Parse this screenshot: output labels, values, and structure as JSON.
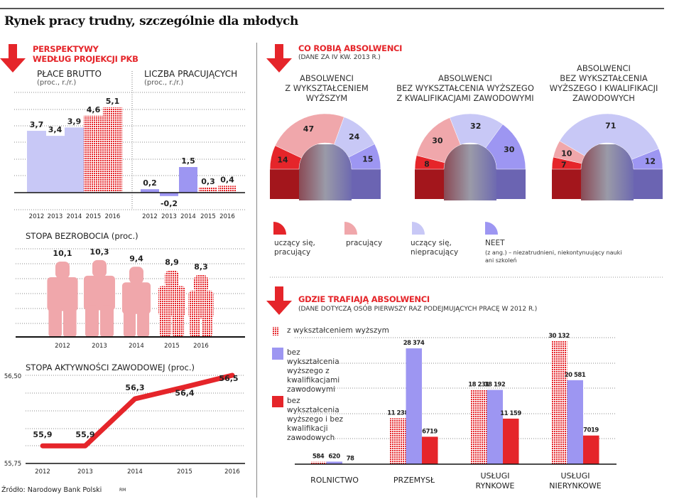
{
  "title": "Rynek pracy trudny, szczególnie dla młodych",
  "colors": {
    "accent": "#e5252a",
    "light_blue": "#c8c8f6",
    "blue": "#9d96f2",
    "pink": "#f0a7ab",
    "dark_red": "#a3161c",
    "dark_blue": "#6b64b2"
  },
  "left": {
    "heading": [
      "PERSPEKTYWY",
      "WEDŁUG PROJEKCJI PKB"
    ],
    "footer_source": "Źródło: Narodowy Bank Polski",
    "footer_initials": "RM"
  },
  "right": {
    "section1": {
      "heading": "CO ROBIĄ ABSOLWENCI",
      "subheading": "(DANE ZA IV KW. 2013 R.)"
    },
    "section2": {
      "heading": "GDZIE TRAFIAJĄ ABSOLWENCI",
      "subheading": "(DANE DOTYCZĄ OSÓB PIERWSZY RAZ PODEJMUJĄCYCH PRACĘ W 2012 R.)"
    }
  },
  "chart_data": [
    {
      "type": "bar",
      "title": "PŁACE BRUTTO",
      "unit": "(proc., r./r.)",
      "categories": [
        "2012",
        "2013",
        "2014",
        "2015",
        "2016"
      ],
      "values": [
        3.7,
        3.4,
        3.9,
        4.6,
        5.1
      ],
      "labels": [
        "3,7",
        "3,4",
        "3,9",
        "4,6",
        "5,1"
      ],
      "projected_from": "2015",
      "grid": true
    },
    {
      "type": "bar",
      "title": "LICZBA PRACUJĄCYCH",
      "unit": "(proc., r./r.)",
      "categories": [
        "2012",
        "2013",
        "2014",
        "2015",
        "2016"
      ],
      "values": [
        0.2,
        -0.2,
        1.5,
        0.3,
        0.4
      ],
      "labels": [
        "0,2",
        "-0,2",
        "1,5",
        "0,3",
        "0,4"
      ],
      "projected_from": "2015",
      "grid": true
    },
    {
      "type": "bar",
      "title": "STOPA BEZROBOCIA",
      "unit": "(proc.)",
      "categories": [
        "2012",
        "2013",
        "2014",
        "2015",
        "2016"
      ],
      "values": [
        10.1,
        10.3,
        9.4,
        8.9,
        8.3
      ],
      "labels": [
        "10,1",
        "10,3",
        "9,4",
        "8,9",
        "8,3"
      ],
      "projected_from": "2015",
      "mark": "person-icon",
      "grid": true
    },
    {
      "type": "line",
      "title": "STOPA AKTYWNOŚCI ZAWODOWEJ",
      "unit": "(proc.)",
      "categories": [
        "2012",
        "2013",
        "2014",
        "2015",
        "2016"
      ],
      "values": [
        55.9,
        55.9,
        56.3,
        56.4,
        56.5
      ],
      "labels": [
        "55,9",
        "55,9",
        "56,3",
        "56,4",
        "56,5"
      ],
      "ylim": [
        55.75,
        56.5
      ],
      "yticks": [
        "55,75",
        "56,50"
      ],
      "grid": true
    },
    {
      "type": "pie",
      "subtype": "half-donut",
      "legend": [
        "uczący się, pracujący",
        "pracujący",
        "uczący się, niepracujący",
        "NEET"
      ],
      "legend_note": "(z ang.) – niezatrudnieni, niekontynuujący nauki ani szkoleń",
      "charts": [
        {
          "title": [
            "ABSOLWENCI",
            "Z WYKSZTAŁCENIEM",
            "WYŻSZYM"
          ],
          "values": [
            14,
            47,
            24,
            15
          ]
        },
        {
          "title": [
            "ABSOLWENCI",
            "BEZ WYKSZTAŁCENIA WYŻSZEGO",
            "Z KWALIFIKACJAMI ZAWODOWYMI"
          ],
          "values": [
            8,
            30,
            32,
            30
          ]
        },
        {
          "title": [
            "ABSOLWENCI",
            "BEZ WYKSZTAŁCENIA",
            "WYŻSZEGO I KWALIFIKACJI",
            "ZAWODOWYCH"
          ],
          "values": [
            7,
            10,
            71,
            12
          ]
        }
      ]
    },
    {
      "type": "bar",
      "categories": [
        "ROLNICTWO",
        "PRZEMYSŁ",
        "USŁUGI RYNKOWE",
        "USŁUGI NIERYNKOWE"
      ],
      "grid": true,
      "series": [
        {
          "name": "z wykształceniem wyższym",
          "values": [
            584,
            11238,
            18231,
            30132
          ],
          "labels": [
            "584",
            "11 238",
            "18 231",
            "30 132"
          ]
        },
        {
          "name": "bez wykształcenia wyższego z kwalifikacjami zawodowymi",
          "values": [
            620,
            28374,
            18192,
            20581
          ],
          "labels": [
            "620",
            "28 374",
            "18 192",
            "20 581"
          ]
        },
        {
          "name": "bez wykształcenia wyższego i bez kwalifikacji zawodowych",
          "values": [
            78,
            6719,
            11159,
            7019
          ],
          "labels": [
            "78",
            "6719",
            "11 159",
            "7019"
          ]
        }
      ]
    }
  ]
}
